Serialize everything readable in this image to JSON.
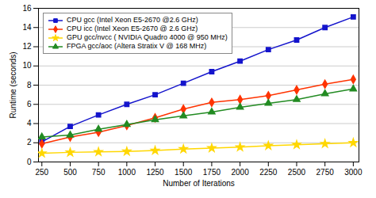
{
  "chart_data": {
    "type": "line",
    "x": [
      250,
      500,
      750,
      1000,
      1250,
      1500,
      1750,
      2000,
      2250,
      2500,
      2750,
      3000
    ],
    "series": [
      {
        "name": "CPU gcc (Intel Xeon E5-2670 @2.6 GHz)",
        "color": "#1414CC",
        "marker": "square",
        "values": [
          2.1,
          3.7,
          4.9,
          6.0,
          7.0,
          8.2,
          9.4,
          10.5,
          11.7,
          12.7,
          14.0,
          15.1
        ]
      },
      {
        "name": "CPU icc (Intel Xeon E5-2670 @ 2.6 GHz)",
        "color": "#FF3300",
        "marker": "diamond",
        "values": [
          1.9,
          2.6,
          3.1,
          3.8,
          4.6,
          5.5,
          6.2,
          6.5,
          6.9,
          7.5,
          8.1,
          8.6
        ]
      },
      {
        "name": "GPU gcc/nvcc ( NVIDIA Quadro 4000 @ 950 MHz)",
        "color": "#FFD700",
        "marker": "star",
        "values": [
          0.9,
          1.0,
          1.05,
          1.1,
          1.2,
          1.35,
          1.45,
          1.55,
          1.7,
          1.8,
          1.9,
          2.0
        ]
      },
      {
        "name": "FPGA gcc/aoc (Altera Stratix V @ 168 MHz)",
        "color": "#228B22",
        "marker": "triangle",
        "values": [
          2.6,
          2.8,
          3.4,
          3.9,
          4.4,
          4.8,
          5.2,
          5.7,
          6.1,
          6.5,
          7.1,
          7.6
        ]
      }
    ],
    "xlabel": "Number of Iterations",
    "ylabel": "Runtime (seconds)",
    "xlim": [
      220,
      3050
    ],
    "ylim": [
      0,
      16
    ],
    "xticks": [
      250,
      500,
      750,
      1000,
      1250,
      1500,
      1750,
      2000,
      2250,
      2500,
      2750,
      3000
    ],
    "yticks": [
      0,
      2,
      4,
      6,
      8,
      10,
      12,
      14,
      16
    ],
    "grid": "y",
    "legend": "upper left"
  }
}
